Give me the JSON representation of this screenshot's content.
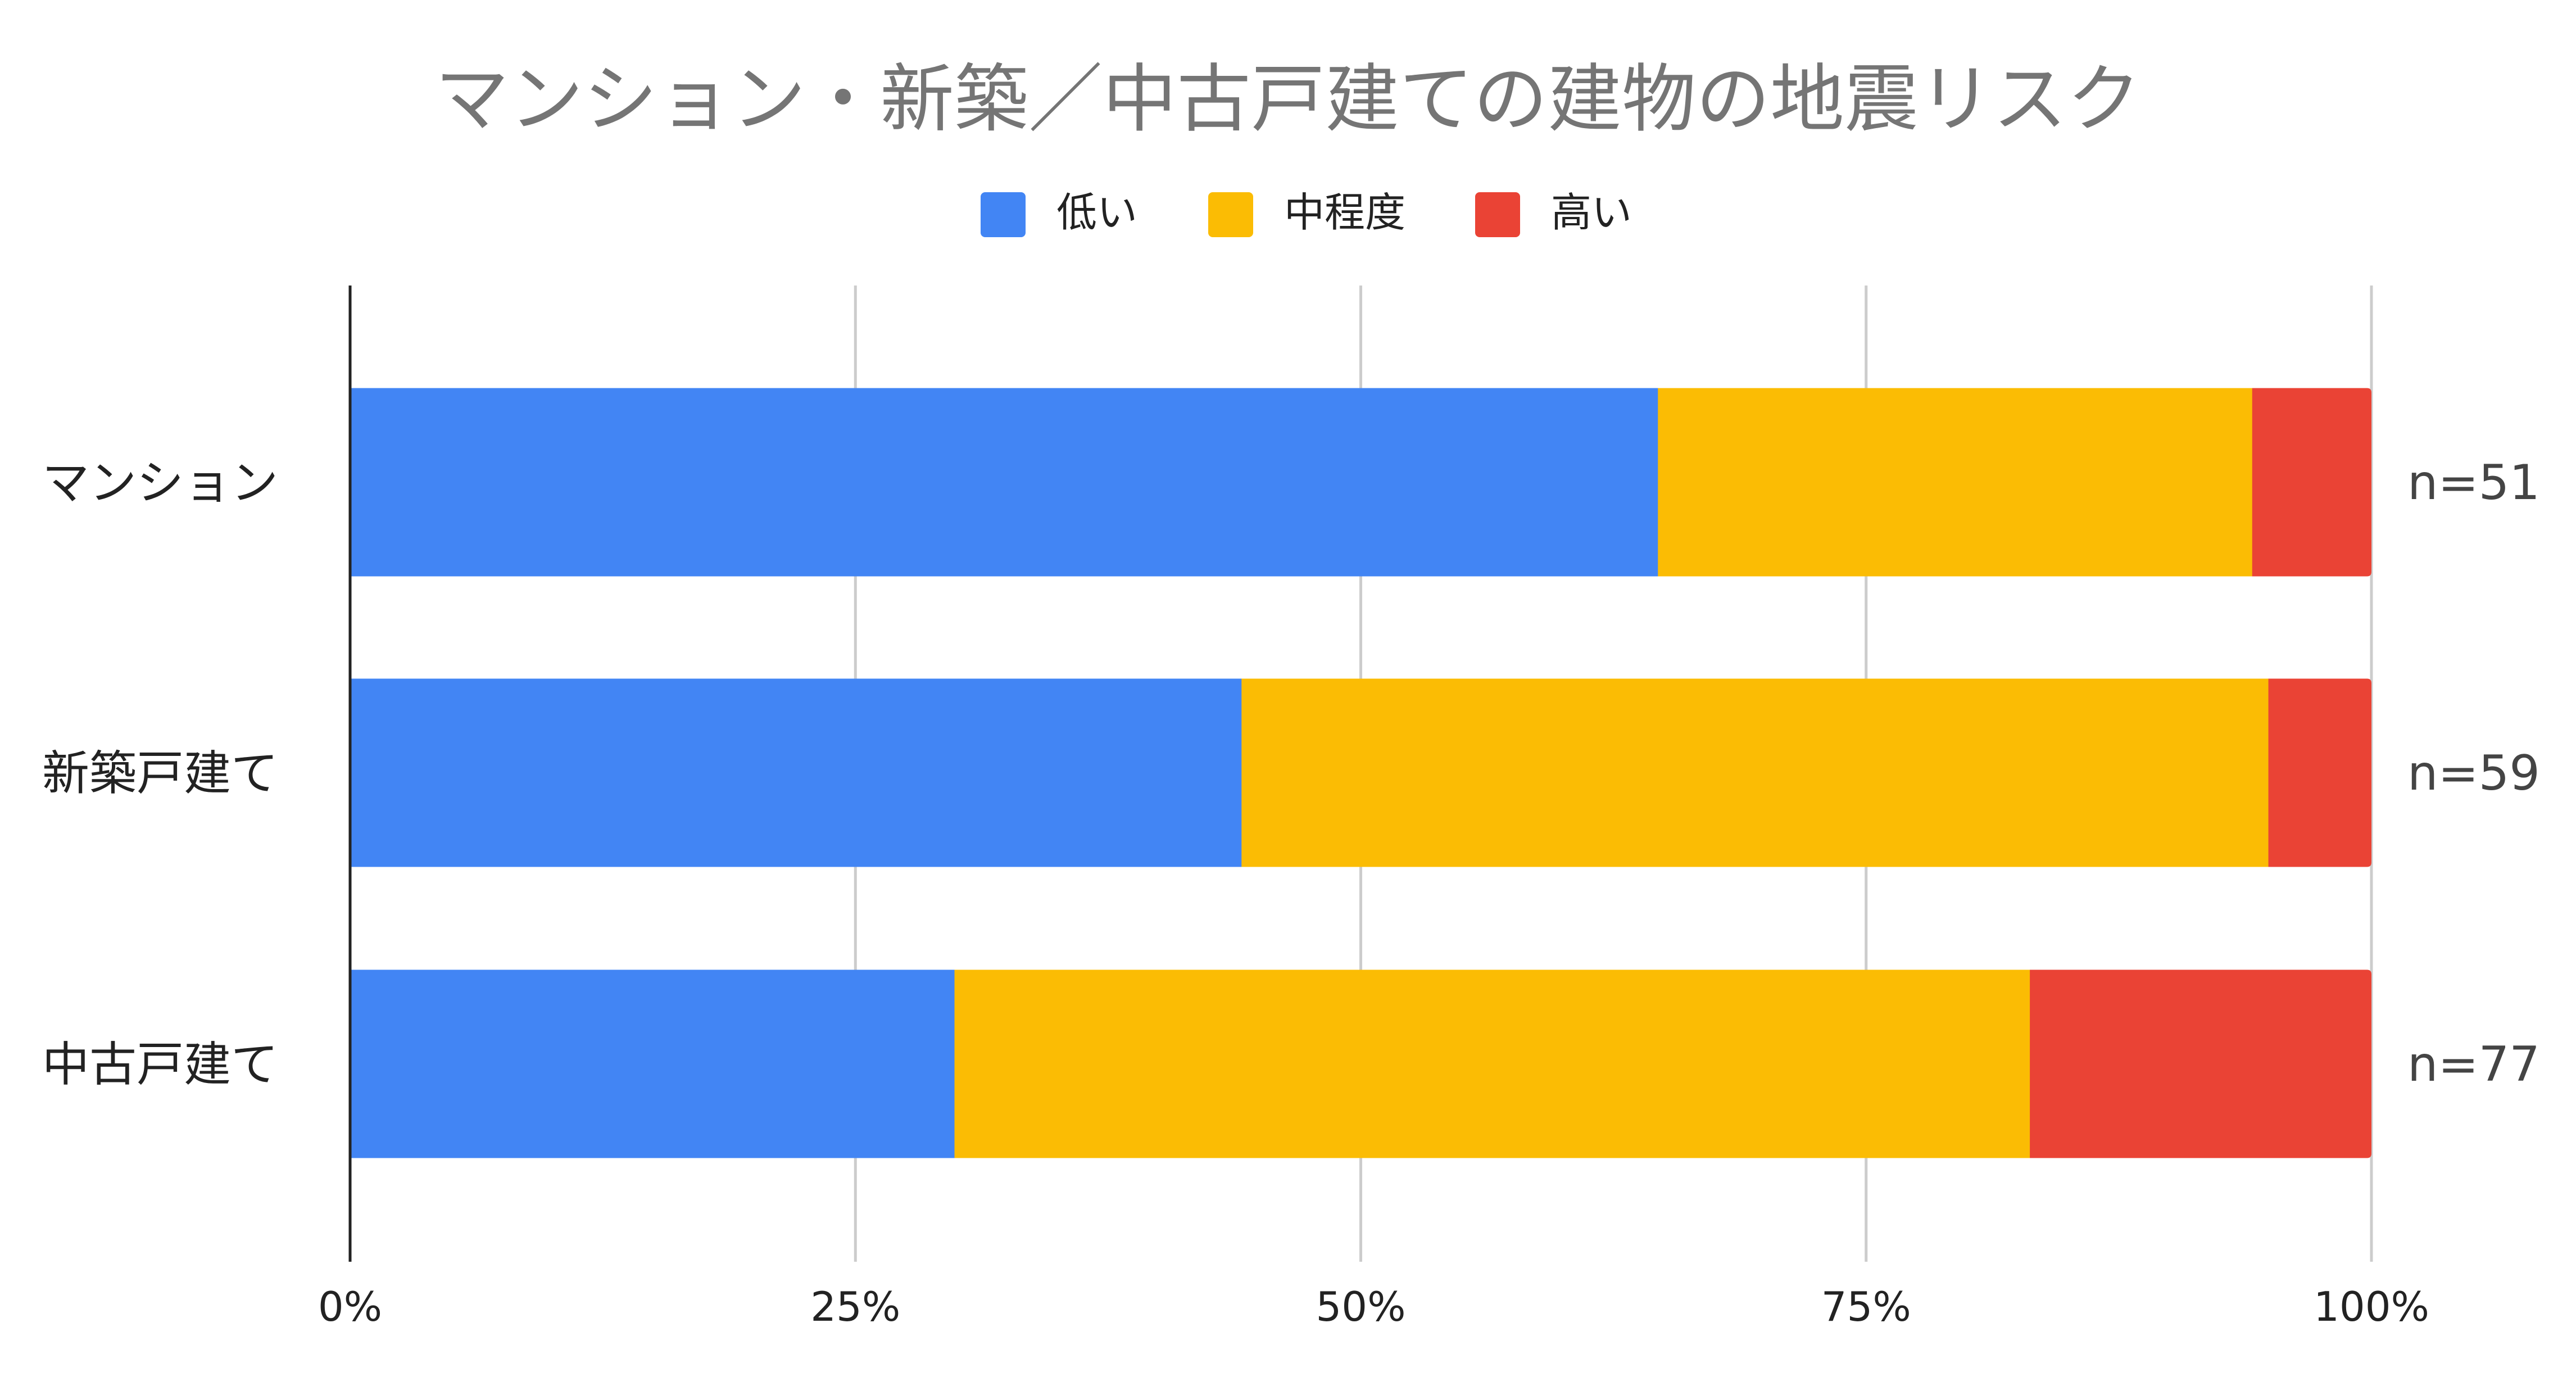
{
  "chart_data": {
    "type": "bar",
    "orientation": "horizontal",
    "stacked": "percent",
    "title": "マンション・新築／中古戸建ての建物の地震リスク",
    "categories": [
      "マンション",
      "新築戸建て",
      "中古戸建て"
    ],
    "sample_sizes": [
      "n=51",
      "n=59",
      "n=77"
    ],
    "series": [
      {
        "name": "低い",
        "color": "#4285f4",
        "values": [
          64.7,
          44.1,
          29.9
        ]
      },
      {
        "name": "中程度",
        "color": "#fbbc04",
        "values": [
          29.4,
          50.8,
          53.2
        ]
      },
      {
        "name": "高い",
        "color": "#ea4335",
        "values": [
          5.9,
          5.1,
          16.9
        ]
      }
    ],
    "x_ticks": [
      "0%",
      "25%",
      "50%",
      "75%",
      "100%"
    ],
    "xlim": [
      0,
      100
    ],
    "grid": true,
    "legend_position": "top-center"
  }
}
